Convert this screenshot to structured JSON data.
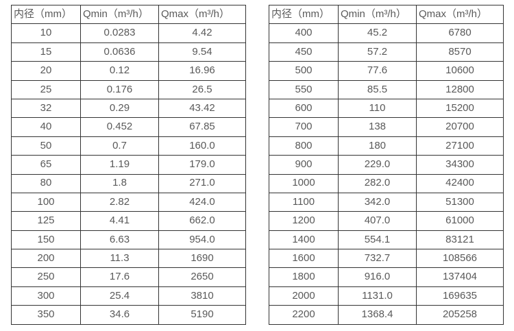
{
  "page": {
    "background_color": "#ffffff",
    "text_color": "#595959",
    "border_color": "#333333"
  },
  "tables": [
    {
      "name": "flow-rate-table-small-diameters",
      "headers": [
        "内径（mm）",
        "Qmin（m³/h）",
        "Qmax（m³/h）"
      ],
      "rows": [
        [
          "10",
          "0.0283",
          "4.42"
        ],
        [
          "15",
          "0.0636",
          "9.54"
        ],
        [
          "20",
          "0.12",
          "16.96"
        ],
        [
          "25",
          "0.176",
          "26.5"
        ],
        [
          "32",
          "0.29",
          "43.42"
        ],
        [
          "40",
          "0.452",
          "67.85"
        ],
        [
          "50",
          "0.7",
          "160.0"
        ],
        [
          "65",
          "1.19",
          "179.0"
        ],
        [
          "80",
          "1.8",
          "271.0"
        ],
        [
          "100",
          "2.82",
          "424.0"
        ],
        [
          "125",
          "4.41",
          "662.0"
        ],
        [
          "150",
          "6.63",
          "954.0"
        ],
        [
          "200",
          "11.3",
          "1690"
        ],
        [
          "250",
          "17.6",
          "2650"
        ],
        [
          "300",
          "25.4",
          "3810"
        ],
        [
          "350",
          "34.6",
          "5190"
        ]
      ]
    },
    {
      "name": "flow-rate-table-large-diameters",
      "headers": [
        "内径（mm）",
        "Qmin（m³/h）",
        "Qmax（m³/h）"
      ],
      "rows": [
        [
          "400",
          "45.2",
          "6780"
        ],
        [
          "450",
          "57.2",
          "8570"
        ],
        [
          "500",
          "77.6",
          "10600"
        ],
        [
          "550",
          "85.5",
          "12800"
        ],
        [
          "600",
          "110",
          "15200"
        ],
        [
          "700",
          "138",
          "20700"
        ],
        [
          "800",
          "180",
          "27100"
        ],
        [
          "900",
          "229.0",
          "34300"
        ],
        [
          "1000",
          "282.0",
          "42400"
        ],
        [
          "1100",
          "342.0",
          "51300"
        ],
        [
          "1200",
          "407.0",
          "61000"
        ],
        [
          "1400",
          "554.1",
          "83121"
        ],
        [
          "1600",
          "732.7",
          "108566"
        ],
        [
          "1800",
          "916.0",
          "137404"
        ],
        [
          "2000",
          "1131.0",
          "169635"
        ],
        [
          "2200",
          "1368.4",
          "205258"
        ]
      ]
    }
  ]
}
